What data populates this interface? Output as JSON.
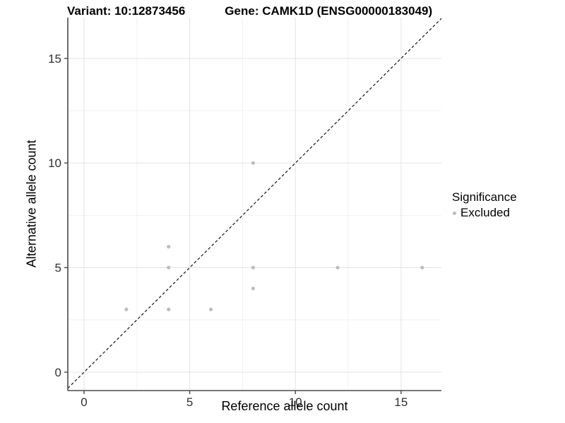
{
  "chart_data": {
    "type": "scatter",
    "title_left": "Variant: 10:12873456",
    "title_right": "Gene: CAMK1D (ENSG00000183049)",
    "xlabel": "Reference allele count",
    "ylabel": "Alternative allele count",
    "xlim": [
      -0.77,
      16.91
    ],
    "ylim": [
      -0.88,
      16.95
    ],
    "x_ticks": [
      0,
      5,
      10,
      15
    ],
    "y_ticks": [
      0,
      5,
      10,
      15
    ],
    "x_minor_ticks": [
      2.5,
      7.5,
      12.5
    ],
    "y_minor_ticks": [
      2.5,
      7.5,
      12.5
    ],
    "grid": true,
    "series": [
      {
        "name": "Excluded",
        "color": "#bdbdbd",
        "points": [
          [
            2,
            3
          ],
          [
            4,
            3
          ],
          [
            6,
            3
          ],
          [
            4,
            5
          ],
          [
            4,
            6
          ],
          [
            8,
            4
          ],
          [
            8,
            5
          ],
          [
            8,
            10
          ],
          [
            12,
            5
          ],
          [
            16,
            5
          ]
        ]
      }
    ],
    "identity_line": {
      "style": "dashed",
      "color": "#111111",
      "equation": "y = x"
    },
    "legend": {
      "title": "Significance",
      "position": "right",
      "items": [
        {
          "label": "Excluded",
          "color": "#bdbdbd"
        }
      ]
    },
    "colors": {
      "major_grid": "#e3e3e3",
      "minor_grid": "#f1f1f1",
      "axis_line": "#4a4a4a",
      "tick_label": "#303030",
      "point": "#bdbdbd"
    }
  }
}
